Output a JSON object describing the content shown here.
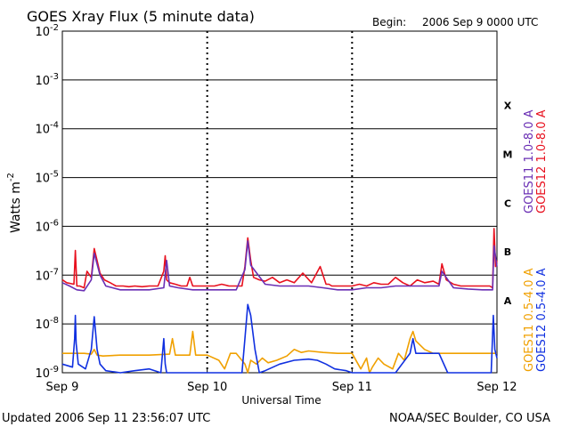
{
  "header": {
    "title": "GOES Xray Flux (5 minute data)",
    "begin_label": "Begin:",
    "begin_value": "2006 Sep 9 0000 UTC"
  },
  "footer": {
    "updated": "Updated 2006 Sep 11 23:56:07 UTC",
    "credit": "NOAA/SEC Boulder, CO USA"
  },
  "chart_data": {
    "type": "line",
    "title": "GOES Xray Flux (5 minute data)",
    "xlabel": "Universal Time",
    "ylabel_text": "Watts m",
    "ylabel_sup": "-2",
    "x_ticks": [
      "Sep 9",
      "Sep 10",
      "Sep 11",
      "Sep 12"
    ],
    "x_range_days": [
      0,
      3
    ],
    "y_scale": "log",
    "ylim": [
      1e-09,
      0.01
    ],
    "y_ticks": [
      {
        "base": "10",
        "exp": "-2",
        "value": 0.01
      },
      {
        "base": "10",
        "exp": "-3",
        "value": 0.001
      },
      {
        "base": "10",
        "exp": "-4",
        "value": 0.0001
      },
      {
        "base": "10",
        "exp": "-5",
        "value": 1e-05
      },
      {
        "base": "10",
        "exp": "-6",
        "value": 1e-06
      },
      {
        "base": "10",
        "exp": "-7",
        "value": 1e-07
      },
      {
        "base": "10",
        "exp": "-8",
        "value": 1e-08
      },
      {
        "base": "10",
        "exp": "-9",
        "value": 1e-09
      }
    ],
    "flare_classes": [
      {
        "label": "X",
        "value": 0.0003
      },
      {
        "label": "M",
        "value": 3e-05
      },
      {
        "label": "C",
        "value": 3e-06
      },
      {
        "label": "B",
        "value": 3e-07
      },
      {
        "label": "A",
        "value": 3e-08
      }
    ],
    "grid": true,
    "legend_placement": "right",
    "series": [
      {
        "name": "GOES12 1.0-8.0 A",
        "color": "#e8101e",
        "x": [
          0,
          0.03,
          0.08,
          0.09,
          0.1,
          0.12,
          0.15,
          0.17,
          0.2,
          0.22,
          0.24,
          0.26,
          0.29,
          0.33,
          0.37,
          0.42,
          0.46,
          0.5,
          0.55,
          0.6,
          0.66,
          0.7,
          0.71,
          0.72,
          0.74,
          0.78,
          0.82,
          0.86,
          0.88,
          0.9,
          0.95,
          1.0,
          1.05,
          1.1,
          1.15,
          1.2,
          1.24,
          1.26,
          1.28,
          1.3,
          1.32,
          1.36,
          1.4,
          1.45,
          1.5,
          1.55,
          1.6,
          1.66,
          1.72,
          1.78,
          1.82,
          1.84,
          1.86,
          1.92,
          2.0,
          2.05,
          2.1,
          2.15,
          2.2,
          2.25,
          2.3,
          2.35,
          2.4,
          2.45,
          2.5,
          2.56,
          2.6,
          2.62,
          2.65,
          2.7,
          2.75,
          2.8,
          2.85,
          2.9,
          2.95,
          2.97,
          2.98,
          2.99,
          3.0
        ],
        "values": [
          8e-08,
          7e-08,
          6.5e-08,
          3.2e-07,
          6e-08,
          6e-08,
          5.5e-08,
          1.2e-07,
          9e-08,
          3.5e-07,
          2e-07,
          1.1e-07,
          8e-08,
          7e-08,
          6e-08,
          6e-08,
          5.8e-08,
          6e-08,
          5.8e-08,
          6e-08,
          6e-08,
          1.2e-07,
          2.5e-07,
          8e-08,
          7e-08,
          6.5e-08,
          6e-08,
          6e-08,
          9e-08,
          6e-08,
          6e-08,
          6e-08,
          6e-08,
          6.5e-08,
          6e-08,
          6e-08,
          6e-08,
          1.5e-07,
          5.8e-07,
          2e-07,
          9e-08,
          8e-08,
          7.5e-08,
          9e-08,
          7e-08,
          8e-08,
          7e-08,
          1.1e-07,
          7e-08,
          1.5e-07,
          6.5e-08,
          6.5e-08,
          6e-08,
          6e-08,
          6e-08,
          6.5e-08,
          6e-08,
          7e-08,
          6.5e-08,
          6.5e-08,
          9e-08,
          7e-08,
          6e-08,
          8e-08,
          7e-08,
          7.5e-08,
          6.5e-08,
          1.7e-07,
          8e-08,
          6.5e-08,
          6e-08,
          6e-08,
          6e-08,
          6e-08,
          6e-08,
          5.5e-08,
          9e-07,
          1.5e-07,
          2e-07
        ]
      },
      {
        "name": "GOES11 1.0-8.0 A",
        "color": "#6a2fb4",
        "x": [
          0,
          0.05,
          0.1,
          0.15,
          0.2,
          0.22,
          0.26,
          0.3,
          0.4,
          0.5,
          0.6,
          0.7,
          0.72,
          0.74,
          0.8,
          0.9,
          1.0,
          1.1,
          1.2,
          1.26,
          1.28,
          1.3,
          1.4,
          1.5,
          1.6,
          1.7,
          1.8,
          1.9,
          2.0,
          2.1,
          2.2,
          2.3,
          2.4,
          2.5,
          2.6,
          2.62,
          2.7,
          2.8,
          2.9,
          2.97,
          2.98,
          3.0
        ],
        "values": [
          7e-08,
          6e-08,
          5e-08,
          4.8e-08,
          8e-08,
          2.8e-07,
          1e-07,
          6e-08,
          5e-08,
          5e-08,
          5e-08,
          5.5e-08,
          2e-07,
          6e-08,
          5.5e-08,
          5e-08,
          5e-08,
          5e-08,
          5e-08,
          1.3e-07,
          5e-07,
          1.6e-07,
          6.5e-08,
          6e-08,
          6e-08,
          6e-08,
          5.5e-08,
          5e-08,
          5e-08,
          5.5e-08,
          5.5e-08,
          6e-08,
          6e-08,
          6e-08,
          6e-08,
          1.2e-07,
          5.5e-08,
          5.2e-08,
          5e-08,
          5e-08,
          4e-07,
          1.5e-07
        ]
      },
      {
        "name": "GOES11 0.5-4.0 A",
        "color": "#f0a000",
        "x": [
          0,
          0.1,
          0.15,
          0.2,
          0.22,
          0.24,
          0.28,
          0.4,
          0.6,
          0.74,
          0.76,
          0.78,
          0.88,
          0.9,
          0.92,
          1.0,
          1.08,
          1.12,
          1.16,
          1.2,
          1.26,
          1.28,
          1.3,
          1.34,
          1.38,
          1.42,
          1.48,
          1.55,
          1.6,
          1.65,
          1.7,
          1.8,
          1.9,
          2.0,
          2.06,
          2.1,
          2.12,
          2.14,
          2.18,
          2.22,
          2.28,
          2.32,
          2.36,
          2.4,
          2.42,
          2.44,
          2.5,
          2.56,
          2.6,
          2.64,
          2.7,
          2.8,
          2.9,
          3.0
        ],
        "values": [
          2.5e-09,
          2.5e-09,
          2.5e-09,
          2.4e-09,
          3e-09,
          2.3e-09,
          2.2e-09,
          2.3e-09,
          2.3e-09,
          2.4e-09,
          5e-09,
          2.3e-09,
          2.3e-09,
          7e-09,
          2.3e-09,
          2.3e-09,
          1.8e-09,
          1.2e-09,
          2.5e-09,
          2.5e-09,
          1.5e-09,
          1e-09,
          1.8e-09,
          1.5e-09,
          2e-09,
          1.6e-09,
          1.8e-09,
          2.2e-09,
          3e-09,
          2.6e-09,
          2.8e-09,
          2.6e-09,
          2.5e-09,
          2.5e-09,
          1.2e-09,
          2e-09,
          1e-09,
          1.3e-09,
          2e-09,
          1.5e-09,
          1.2e-09,
          2.5e-09,
          1.8e-09,
          5e-09,
          7e-09,
          4.5e-09,
          3e-09,
          2.5e-09,
          2.5e-09,
          2.5e-09,
          2.5e-09,
          2.5e-09,
          2.5e-09,
          2.5e-09
        ]
      },
      {
        "name": "GOES12 0.5-4.0 A",
        "color": "#1030e0",
        "x": [
          0,
          0.07,
          0.085,
          0.09,
          0.095,
          0.11,
          0.16,
          0.2,
          0.22,
          0.24,
          0.26,
          0.3,
          0.4,
          0.5,
          0.6,
          0.68,
          0.7,
          0.71,
          0.72,
          0.74,
          0.8,
          0.9,
          1.0,
          1.1,
          1.2,
          1.24,
          1.26,
          1.28,
          1.3,
          1.33,
          1.36,
          1.4,
          1.5,
          1.6,
          1.7,
          1.76,
          1.82,
          1.88,
          1.96,
          2.0,
          2.1,
          2.2,
          2.3,
          2.4,
          2.42,
          2.44,
          2.5,
          2.56,
          2.6,
          2.66,
          2.8,
          2.9,
          2.96,
          2.975,
          2.985,
          3.0
        ],
        "values": [
          1.5e-09,
          1.3e-09,
          5e-09,
          1.5e-08,
          4e-09,
          1.5e-09,
          1.2e-09,
          3e-09,
          1.4e-08,
          3e-09,
          1.5e-09,
          1.1e-09,
          1e-09,
          1.1e-09,
          1.2e-09,
          1e-09,
          5e-09,
          1.5e-09,
          1e-09,
          1e-09,
          1e-09,
          1e-09,
          1e-09,
          1e-09,
          1e-09,
          1e-09,
          5e-09,
          2.5e-08,
          1.5e-08,
          3e-09,
          1e-09,
          1.1e-09,
          1.5e-09,
          1.8e-09,
          1.9e-09,
          1.8e-09,
          1.5e-09,
          1.2e-09,
          1.1e-09,
          1e-09,
          1e-09,
          1e-09,
          1e-09,
          2.5e-09,
          5e-09,
          2.5e-09,
          2.5e-09,
          2.5e-09,
          2.5e-09,
          1e-09,
          1e-09,
          1e-09,
          1e-09,
          1.5e-08,
          3e-09,
          2e-09
        ]
      }
    ]
  }
}
